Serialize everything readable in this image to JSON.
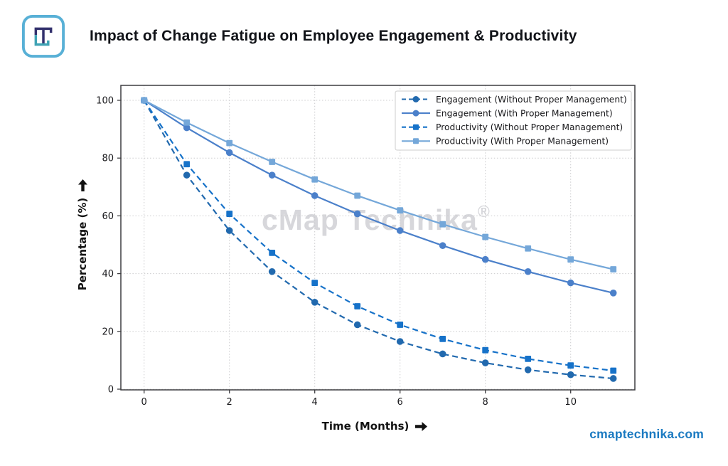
{
  "title": "Impact of Change Fatigue on Employee Engagement & Productivity",
  "brand": {
    "watermark_text": "cMap Technika",
    "watermark_mark": "®",
    "website": "cmaptechnika.com",
    "logo_border_color": "#58b0d6",
    "logo_glyph_navy": "#33316d",
    "logo_glyph_teal": "#3fa3b4",
    "link_color": "#1b7ac1"
  },
  "chart_data": {
    "type": "line",
    "title": "Impact of Change Fatigue on Employee Engagement & Productivity",
    "xlabel": "Time (Months)",
    "ylabel": "Percentage (%)",
    "x": [
      0,
      1,
      2,
      3,
      4,
      5,
      6,
      7,
      8,
      9,
      10,
      11
    ],
    "xticks": [
      0,
      2,
      4,
      6,
      8,
      10
    ],
    "yticks": [
      0,
      20,
      40,
      60,
      80,
      100
    ],
    "xlim": [
      -0.55,
      11.5
    ],
    "ylim": [
      0,
      105
    ],
    "grid": true,
    "grid_style": "dotted",
    "legend_position": "upper right",
    "series": [
      {
        "name": "Engagement (Without Proper Management)",
        "marker": "circle",
        "line_style": "dashed",
        "color": "#2169ae",
        "values": [
          100,
          74.1,
          54.9,
          40.7,
          30.1,
          22.3,
          16.5,
          12.2,
          9.1,
          6.7,
          5.0,
          3.7
        ]
      },
      {
        "name": "Engagement (With Proper Management)",
        "marker": "circle",
        "line_style": "solid",
        "color": "#4b80ca",
        "values": [
          100,
          90.5,
          81.9,
          74.1,
          67.0,
          60.7,
          54.9,
          49.7,
          44.9,
          40.7,
          36.8,
          33.3
        ]
      },
      {
        "name": "Productivity (Without Proper Management)",
        "marker": "square",
        "line_style": "dashed",
        "color": "#1672c9",
        "values": [
          100,
          77.9,
          60.7,
          47.2,
          36.8,
          28.7,
          22.3,
          17.4,
          13.5,
          10.5,
          8.2,
          6.4
        ]
      },
      {
        "name": "Productivity (With Proper Management)",
        "marker": "square",
        "line_style": "solid",
        "color": "#74a7d9",
        "values": [
          100,
          92.3,
          85.2,
          78.7,
          72.6,
          67.0,
          61.9,
          57.1,
          52.7,
          48.7,
          44.9,
          41.5
        ]
      }
    ]
  }
}
